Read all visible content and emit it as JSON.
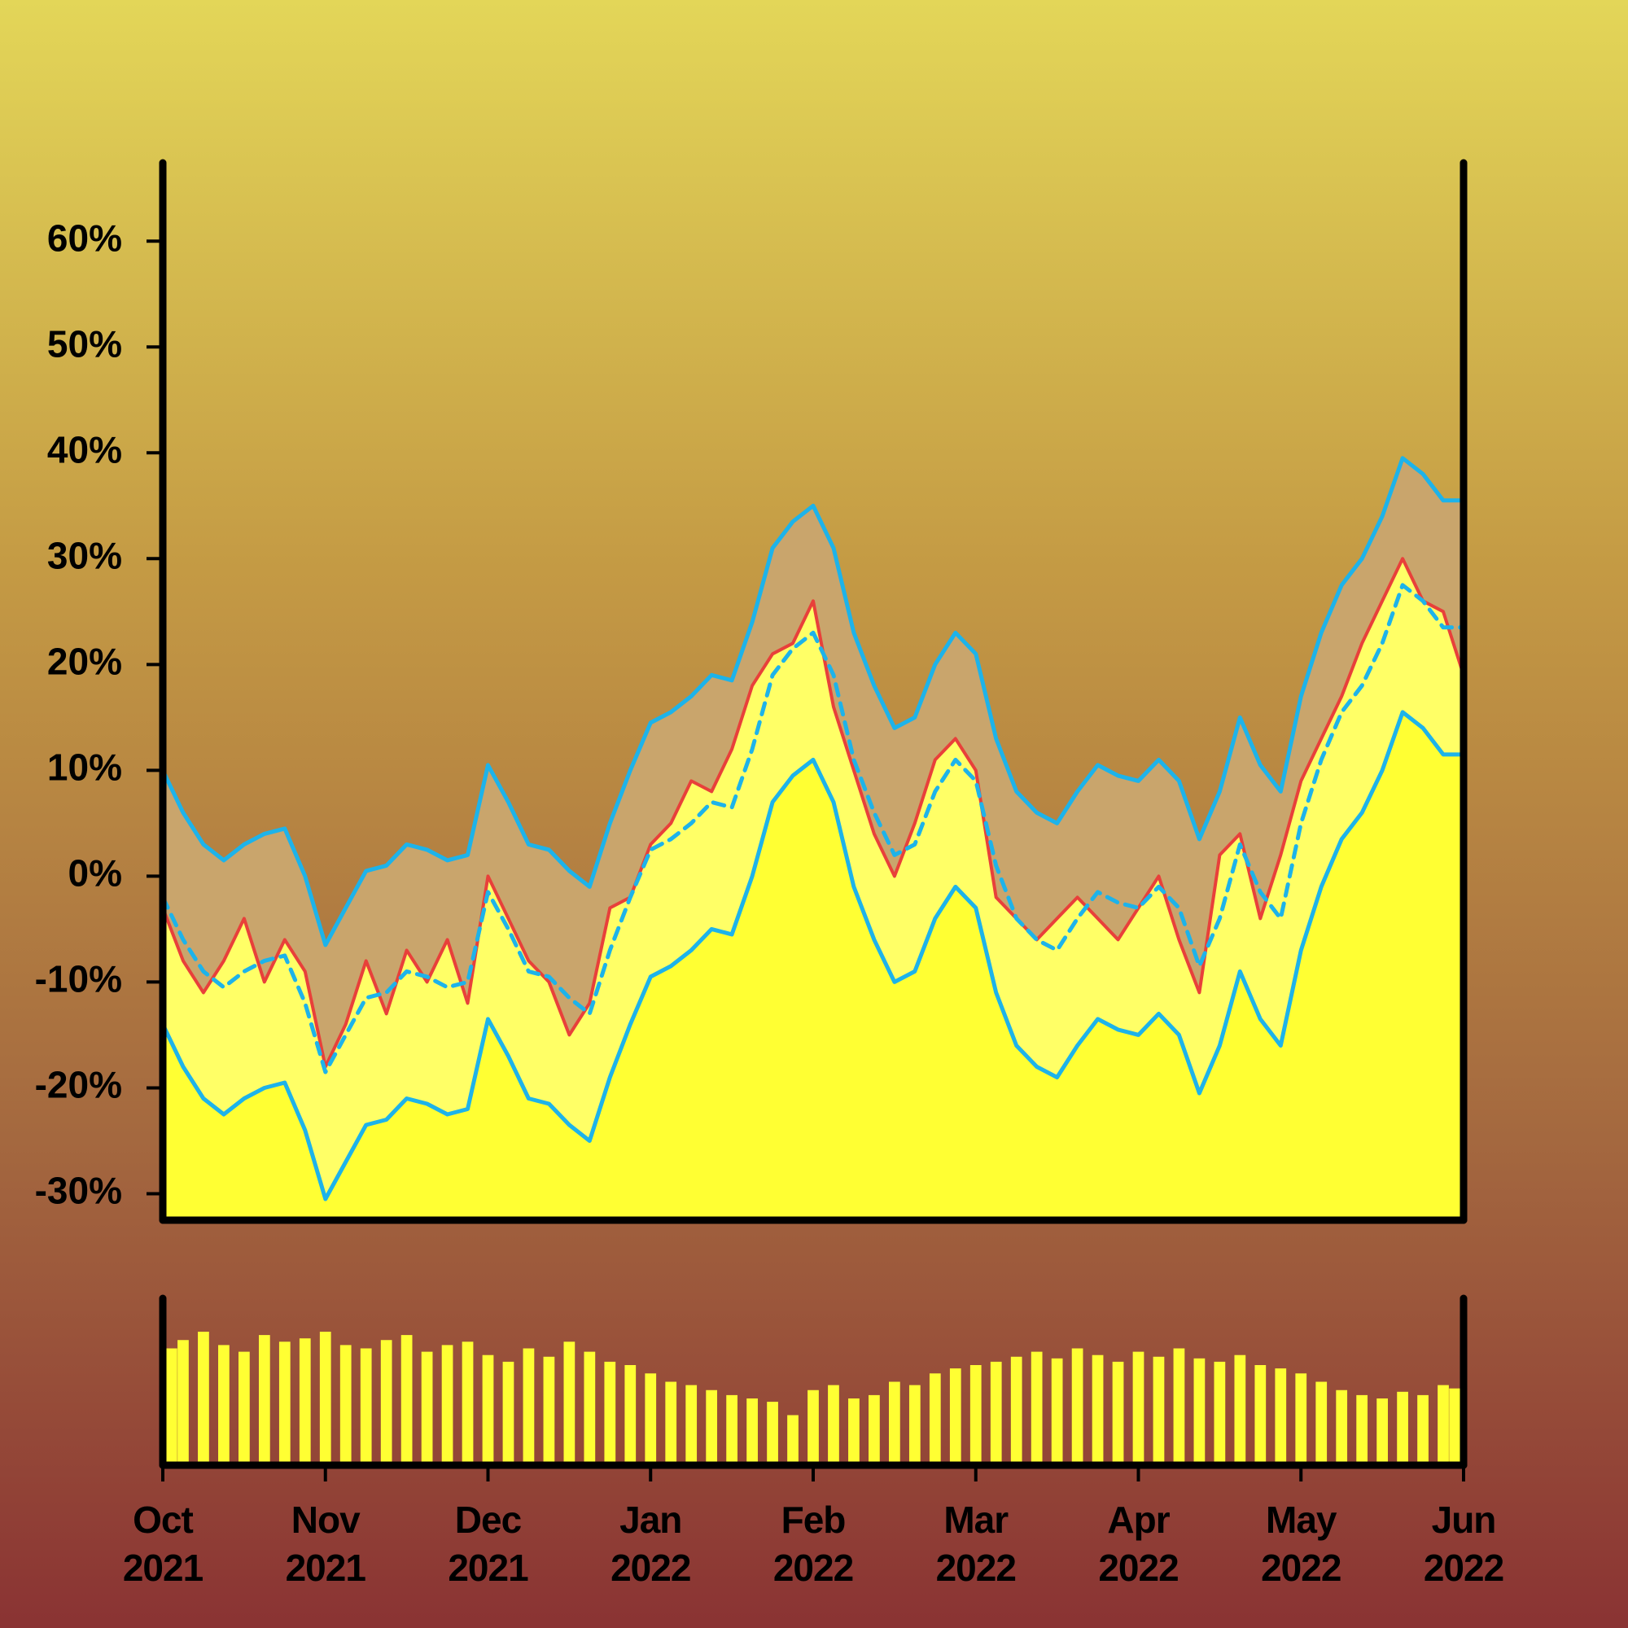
{
  "chart_data": {
    "type": "line",
    "categories": [
      "Oct 2021",
      null,
      null,
      null,
      null,
      null,
      null,
      null,
      "Nov 2021",
      null,
      null,
      null,
      null,
      null,
      null,
      null,
      "Dec 2021",
      null,
      null,
      null,
      null,
      null,
      null,
      null,
      "Jan 2022",
      null,
      null,
      null,
      null,
      null,
      null,
      null,
      "Feb 2022",
      null,
      null,
      null,
      null,
      null,
      null,
      null,
      "Mar 2022",
      null,
      null,
      null,
      null,
      null,
      null,
      null,
      "Apr 2022",
      null,
      null,
      null,
      null,
      null,
      null,
      null,
      "May 2022",
      null,
      null,
      null,
      null,
      null,
      null,
      null,
      "Jun 2022"
    ],
    "series": [
      {
        "color": "#1db3ea",
        "fill": "#c9a56c",
        "values": [
          10,
          6,
          3,
          1.5,
          3,
          4,
          4.5,
          0,
          -6.5,
          -3,
          0.5,
          1,
          3,
          2.5,
          1.5,
          2,
          10.5,
          7,
          3,
          2.5,
          0.5,
          -1,
          5,
          10,
          14.5,
          15.5,
          17,
          19,
          18.5,
          24,
          31,
          33.5,
          35,
          31,
          23,
          18,
          14,
          15,
          20,
          23,
          21,
          13,
          8,
          6,
          5,
          8,
          10.5,
          9.5,
          9,
          11,
          9,
          3.5,
          8,
          15,
          10.5,
          8,
          17,
          23,
          27.5,
          30,
          34,
          39.5,
          38,
          35.5,
          35.5
        ]
      },
      {
        "color": "#e8403a",
        "fill": "#ffff66",
        "values": [
          -3,
          -8,
          -11,
          -8,
          -4,
          -10,
          -6,
          -9,
          -18,
          -14,
          -8,
          -13,
          -7,
          -10,
          -6,
          -12,
          0,
          -4,
          -8,
          -10,
          -15,
          -12,
          -3,
          -2,
          3,
          5,
          9,
          8,
          12,
          18,
          21,
          22,
          26,
          16,
          10,
          4,
          0,
          5,
          11,
          13,
          10,
          -2,
          -4,
          -6,
          -4,
          -2,
          -4,
          -6,
          -3,
          0,
          -6,
          -11,
          2,
          4,
          -4,
          2,
          9,
          13,
          17,
          22,
          26,
          30,
          26,
          25,
          19
        ]
      },
      {
        "color": "#1db3ea",
        "dashed": true,
        "values": [
          -2,
          -6,
          -9,
          -10.5,
          -9,
          -8,
          -7.5,
          -12,
          -18.5,
          -15,
          -11.5,
          -11,
          -9,
          -9.5,
          -10.5,
          -10,
          -1.5,
          -5,
          -9,
          -9.5,
          -11.5,
          -13,
          -7,
          -2,
          2.5,
          3.5,
          5,
          7,
          6.5,
          12,
          19,
          21.5,
          23,
          19,
          11,
          6,
          2,
          3,
          8,
          11,
          9,
          1,
          -4,
          -6,
          -7,
          -4,
          -1.5,
          -2.5,
          -3,
          -1,
          -3,
          -8.5,
          -4,
          3,
          -1.5,
          -4,
          5,
          11,
          15.5,
          18,
          22,
          27.5,
          26,
          23.5,
          23.5
        ]
      },
      {
        "color": "#1db3ea",
        "fill": "#ffff33",
        "values": [
          -14,
          -18,
          -21,
          -22.5,
          -21,
          -20,
          -19.5,
          -24,
          -30.5,
          -27,
          -23.5,
          -23,
          -21,
          -21.5,
          -22.5,
          -22,
          -13.5,
          -17,
          -21,
          -21.5,
          -23.5,
          -25,
          -19,
          -14,
          -9.5,
          -8.5,
          -7,
          -5,
          -5.5,
          0,
          7,
          9.5,
          11,
          7,
          -1,
          -6,
          -10,
          -9,
          -4,
          -1,
          -3,
          -11,
          -16,
          -18,
          -19,
          -16,
          -13.5,
          -14.5,
          -15,
          -13,
          -15,
          -20.5,
          -16,
          -9,
          -13.5,
          -16,
          -7,
          -1,
          3.5,
          6,
          10,
          15.5,
          14,
          11.5,
          11.5
        ]
      }
    ],
    "ylim": [
      -32.5,
      67.4
    ],
    "yticks": [
      {
        "value": -30,
        "label": "-30%"
      },
      {
        "value": -20,
        "label": "-20%"
      },
      {
        "value": -10,
        "label": "-10%"
      },
      {
        "value": 0,
        "label": "0%"
      },
      {
        "value": 10,
        "label": "10%"
      },
      {
        "value": 20,
        "label": "20%"
      },
      {
        "value": 30,
        "label": "30%"
      },
      {
        "value": 40,
        "label": "40%"
      },
      {
        "value": 50,
        "label": "50%"
      },
      {
        "value": 60,
        "label": "60%"
      }
    ],
    "volume": {
      "color": "#ffff33",
      "ylim": [
        0,
        100
      ],
      "values": [
        70,
        75,
        80,
        72,
        68,
        78,
        74,
        76,
        80,
        72,
        70,
        75,
        78,
        68,
        72,
        74,
        66,
        62,
        70,
        65,
        74,
        68,
        62,
        60,
        55,
        50,
        48,
        45,
        42,
        40,
        38,
        30,
        45,
        48,
        40,
        42,
        50,
        48,
        55,
        58,
        60,
        62,
        65,
        68,
        64,
        70,
        66,
        62,
        68,
        65,
        70,
        64,
        62,
        66,
        60,
        58,
        55,
        50,
        45,
        42,
        40,
        44,
        42,
        48,
        46
      ]
    }
  }
}
